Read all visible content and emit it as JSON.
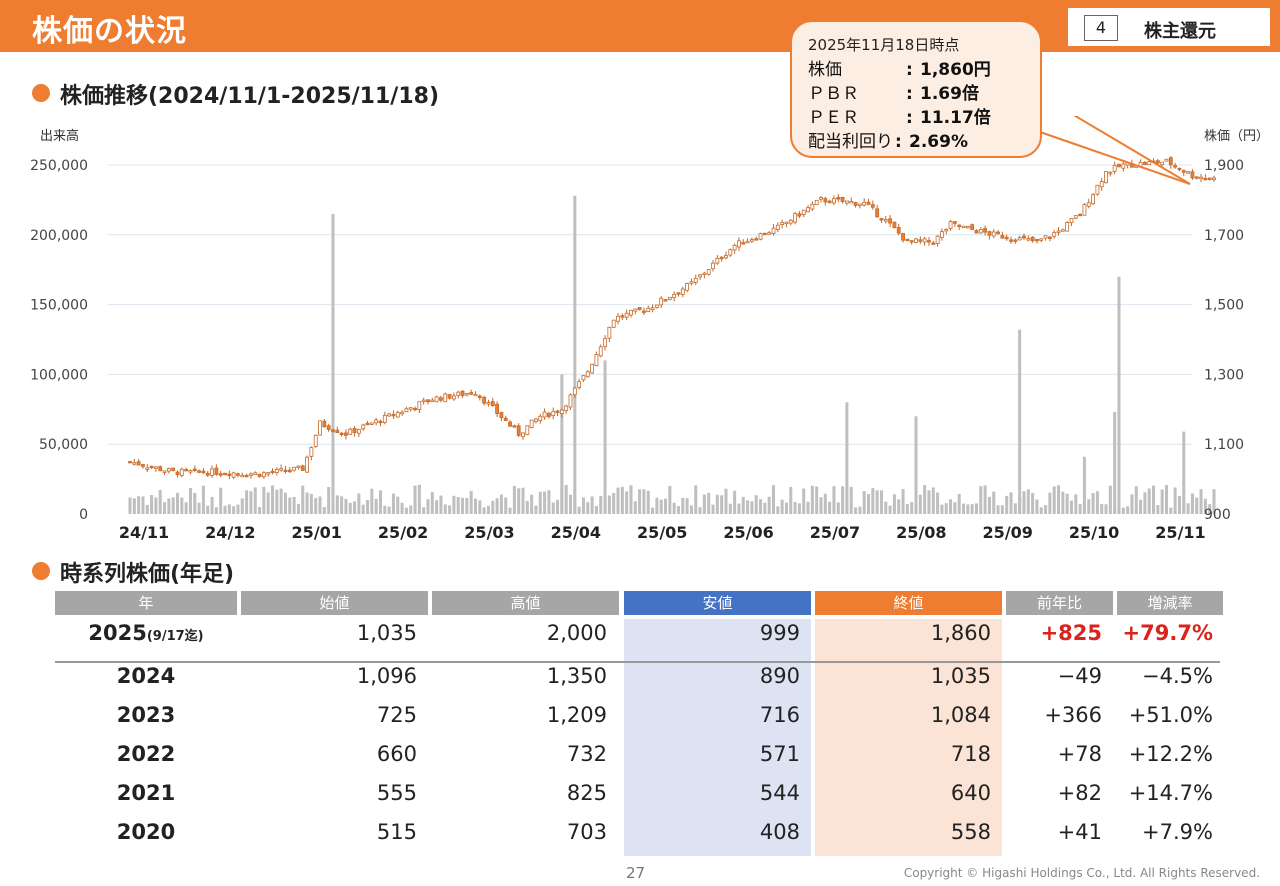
{
  "header": {
    "title": "株価の状況",
    "section_number": "4",
    "section_label": "株主還元"
  },
  "price_section": {
    "heading": "株価推移(2024/11/1-2025/11/18)"
  },
  "callout": {
    "date": "2025年11月18日時点",
    "rows": [
      {
        "label": "株価",
        "value": "1,860円"
      },
      {
        "label": "ＰＢＲ",
        "value": "1.69倍"
      },
      {
        "label": "ＰＥＲ",
        "value": "11.17倍"
      },
      {
        "label": "配当利回り",
        "value": "2.69%"
      }
    ]
  },
  "table_section": {
    "heading": "時系列株価(年足)",
    "columns": [
      "年",
      "始値",
      "高値",
      "安値",
      "終値",
      "前年比",
      "増減率"
    ],
    "column_colors": [
      "#a6a6a6",
      "#a6a6a6",
      "#a6a6a6",
      "#4472c4",
      "#ee7d31",
      "#a6a6a6",
      "#a6a6a6"
    ],
    "rows": [
      {
        "year": "2025",
        "note": "(9/17迄)",
        "open": "1,035",
        "high": "2,000",
        "low": "999",
        "close": "1,860",
        "change": "+825",
        "rate": "+79.7%",
        "highlight": true
      },
      {
        "year": "2024",
        "note": "",
        "open": "1,096",
        "high": "1,350",
        "low": "890",
        "close": "1,035",
        "change": "−49",
        "rate": "−4.5%"
      },
      {
        "year": "2023",
        "note": "",
        "open": "725",
        "high": "1,209",
        "low": "716",
        "close": "1,084",
        "change": "+366",
        "rate": "+51.0%"
      },
      {
        "year": "2022",
        "note": "",
        "open": "660",
        "high": "732",
        "low": "571",
        "close": "718",
        "change": "+78",
        "rate": "+12.2%"
      },
      {
        "year": "2021",
        "note": "",
        "open": "555",
        "high": "825",
        "low": "544",
        "close": "640",
        "change": "+82",
        "rate": "+14.7%"
      },
      {
        "year": "2020",
        "note": "",
        "open": "515",
        "high": "703",
        "low": "408",
        "close": "558",
        "change": "+41",
        "rate": "+7.9%"
      }
    ]
  },
  "footer": {
    "page": "27",
    "copyright": "Copyright © Higashi Holdings Co., Ltd. All Rights Reserved."
  },
  "chart_data": {
    "type": "candlestick_volume",
    "title": "株価推移(2024/11/1-2025/11/18)",
    "ylabel_left": "出来高",
    "ylabel_right": "株価（円）",
    "volume_axis": {
      "ylim": [
        0,
        250000
      ],
      "ticks": [
        0,
        50000,
        100000,
        150000,
        200000,
        250000
      ],
      "tick_labels": [
        "0",
        "50,000",
        "100,000",
        "150,000",
        "200,000",
        "250,000"
      ]
    },
    "price_axis": {
      "ylim": [
        900,
        1900
      ],
      "ticks": [
        900,
        1100,
        1300,
        1500,
        1700,
        1900
      ],
      "tick_labels": [
        "900",
        "1,100",
        "1,300",
        "1,500",
        "1,700",
        "1,900"
      ]
    },
    "x_tick_labels": [
      "24/11",
      "24/12",
      "25/01",
      "25/02",
      "25/03",
      "25/04",
      "25/05",
      "25/06",
      "25/07",
      "25/08",
      "25/09",
      "25/10",
      "25/11"
    ],
    "grid": true,
    "colors": {
      "up": "#ffffff",
      "down": "#ee7d31",
      "candle_border": "#c46a2a",
      "volume": "#bfbfbf",
      "grid": "#dce6ef"
    },
    "price_series": {
      "name": "株価",
      "month_index": [
        0,
        0.5,
        1,
        1.5,
        2,
        2.2,
        2.5,
        3,
        3.5,
        4,
        4.5,
        4.75,
        5,
        5.3,
        5.6,
        6,
        6.5,
        7,
        7.5,
        8,
        8.5,
        8.75,
        9,
        9.3,
        9.5,
        10,
        10.5,
        10.75,
        11,
        11.3,
        11.5,
        12,
        12.3,
        12.55
      ],
      "close": [
        1050,
        1020,
        1020,
        1015,
        1030,
        1160,
        1130,
        1180,
        1230,
        1250,
        1130,
        1180,
        1200,
        1310,
        1460,
        1490,
        1560,
        1670,
        1720,
        1800,
        1790,
        1740,
        1680,
        1680,
        1730,
        1700,
        1680,
        1710,
        1760,
        1880,
        1900,
        1910,
        1870,
        1860
      ]
    },
    "volume_series": {
      "name": "出来高",
      "spikes": [
        {
          "month_index": 2.35,
          "value": 215000
        },
        {
          "month_index": 5.15,
          "value": 228000
        },
        {
          "month_index": 5.0,
          "value": 100000
        },
        {
          "month_index": 5.5,
          "value": 110000
        },
        {
          "month_index": 8.3,
          "value": 80000
        },
        {
          "month_index": 9.1,
          "value": 70000
        },
        {
          "month_index": 10.3,
          "value": 132000
        },
        {
          "month_index": 11.45,
          "value": 170000
        },
        {
          "month_index": 11.4,
          "value": 73000
        },
        {
          "month_index": 11.05,
          "value": 41000
        },
        {
          "month_index": 12.2,
          "value": 59000
        }
      ],
      "baseline": 15000
    }
  }
}
